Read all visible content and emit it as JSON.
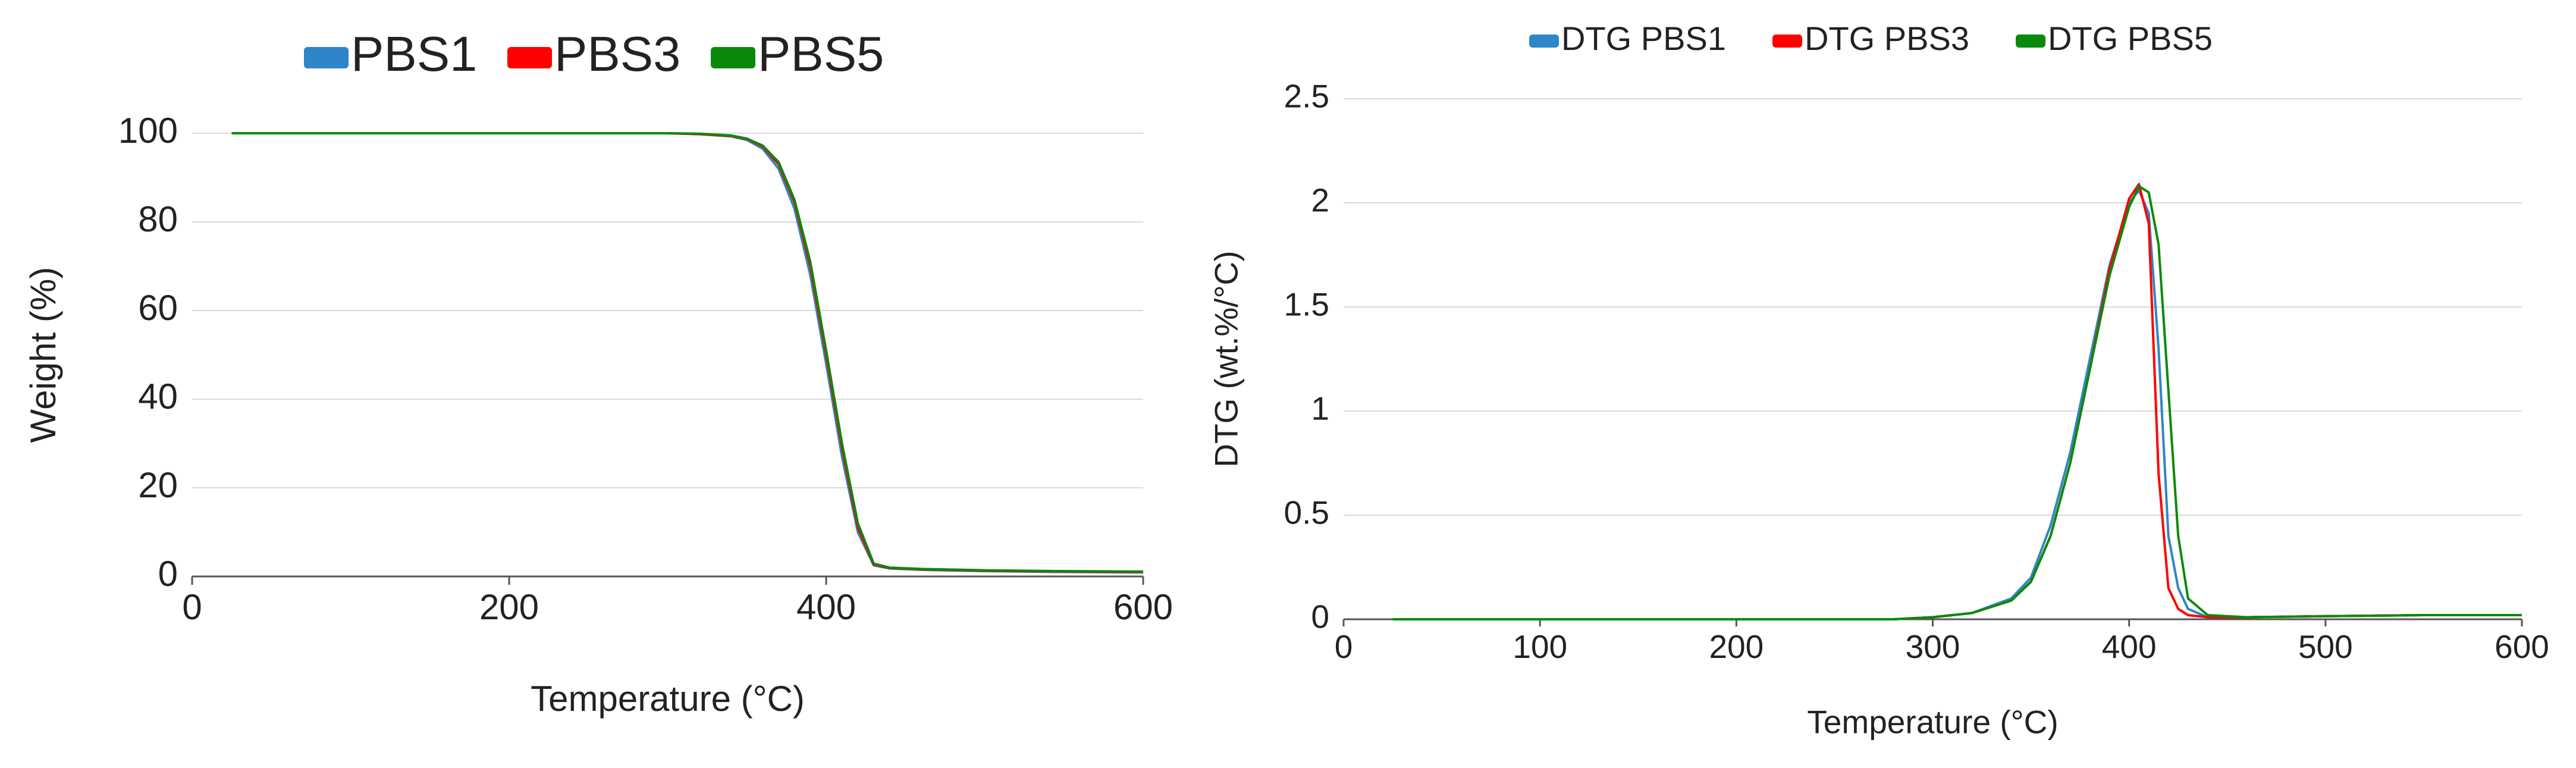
{
  "chart_data": [
    {
      "type": "line",
      "x_label": "Temperature (°C)",
      "y_label": "Weight (%)",
      "x": [
        25,
        50,
        100,
        150,
        200,
        250,
        300,
        320,
        340,
        350,
        360,
        370,
        380,
        390,
        400,
        410,
        420,
        430,
        440,
        460,
        500,
        550,
        600
      ],
      "series": [
        {
          "name": "PBS1",
          "color": "#2e86c8",
          "values": [
            100,
            100,
            100,
            100,
            100,
            100,
            100,
            99.8,
            99.3,
            98.5,
            96.5,
            92,
            83,
            68,
            48,
            27,
            10,
            2.5,
            1.8,
            1.5,
            1.2,
            1.0,
            0.9
          ]
        },
        {
          "name": "PBS3",
          "color": "#ff0000",
          "values": [
            100,
            100,
            100,
            100,
            100,
            100,
            100,
            99.8,
            99.4,
            98.7,
            97,
            93,
            84.5,
            70,
            50,
            29,
            11,
            2.7,
            1.9,
            1.6,
            1.3,
            1.1,
            1.0
          ]
        },
        {
          "name": "PBS5",
          "color": "#0a8a0a",
          "values": [
            100,
            100,
            100,
            100,
            100,
            100,
            100,
            99.9,
            99.5,
            98.8,
            97.2,
            93.5,
            85,
            71,
            51,
            30,
            12,
            2.9,
            2.0,
            1.7,
            1.4,
            1.2,
            1.1
          ]
        }
      ],
      "xlim": [
        0,
        600
      ],
      "xticks": [
        0,
        200,
        400,
        600
      ],
      "ylim": [
        0,
        100
      ],
      "yticks": [
        0,
        20,
        40,
        60,
        80,
        100
      ],
      "grid": true
    },
    {
      "type": "line",
      "x_label": "Temperature (°C)",
      "y_label": "DTG (wt.%/°C)",
      "x": [
        25,
        100,
        200,
        280,
        300,
        320,
        340,
        350,
        360,
        370,
        380,
        390,
        400,
        405,
        410,
        415,
        420,
        425,
        430,
        440,
        460,
        500,
        550,
        600
      ],
      "series": [
        {
          "name": "DTG PBS1",
          "color": "#2e86c8",
          "values": [
            0,
            0,
            0,
            0,
            0.01,
            0.03,
            0.1,
            0.2,
            0.45,
            0.8,
            1.25,
            1.7,
            2.0,
            2.06,
            1.95,
            1.3,
            0.4,
            0.15,
            0.05,
            0.01,
            0.01,
            0.015,
            0.02,
            0.02
          ]
        },
        {
          "name": "DTG PBS3",
          "color": "#ff0000",
          "values": [
            0,
            0,
            0,
            0,
            0.01,
            0.03,
            0.09,
            0.18,
            0.4,
            0.75,
            1.2,
            1.68,
            2.02,
            2.09,
            1.9,
            0.7,
            0.15,
            0.05,
            0.02,
            0.01,
            0.01,
            0.015,
            0.02,
            0.02
          ]
        },
        {
          "name": "DTG PBS5",
          "color": "#0a8a0a",
          "values": [
            0,
            0,
            0,
            0,
            0.01,
            0.03,
            0.09,
            0.18,
            0.4,
            0.75,
            1.2,
            1.65,
            1.98,
            2.08,
            2.05,
            1.8,
            1.1,
            0.4,
            0.1,
            0.02,
            0.01,
            0.015,
            0.02,
            0.02
          ]
        }
      ],
      "xlim": [
        0,
        600
      ],
      "xticks": [
        0,
        100,
        200,
        300,
        400,
        500,
        600
      ],
      "ylim": [
        0,
        2.5
      ],
      "yticks": [
        0,
        0.5,
        1,
        1.5,
        2,
        2.5
      ],
      "grid": true
    }
  ]
}
